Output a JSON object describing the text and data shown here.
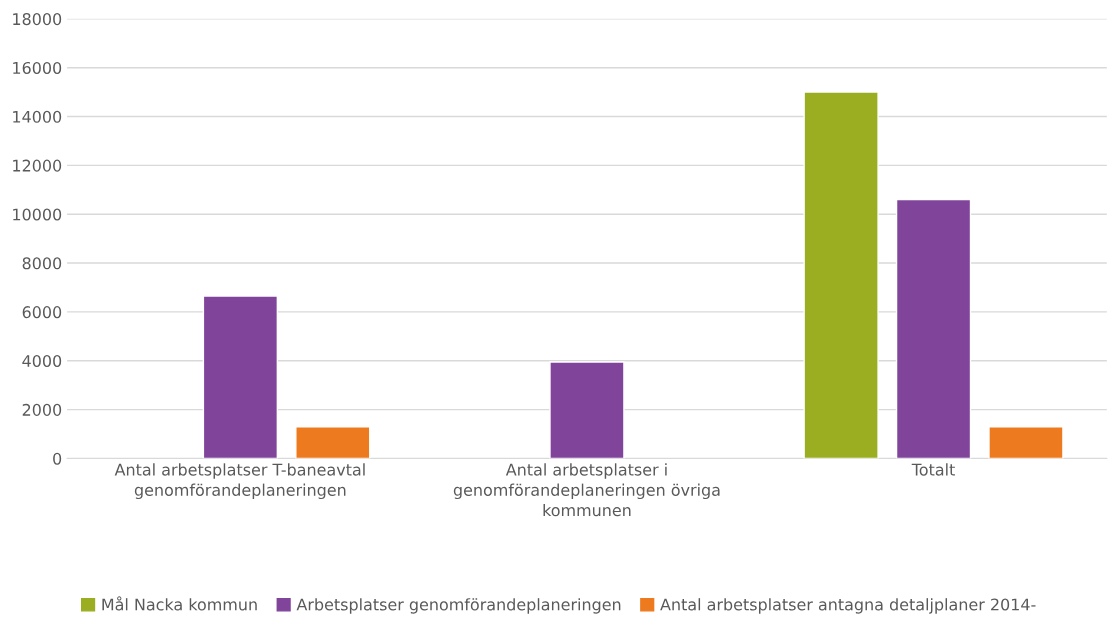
{
  "chart_data": {
    "type": "bar",
    "categories": [
      "Antal arbetsplatser T-baneavtal genomförandeplaneringen",
      "Antal arbetsplatser i genomförandeplaneringen övriga kommunen",
      "Totalt"
    ],
    "series": [
      {
        "name": "Mål Nacka kommun",
        "color": "#9bae22",
        "values": [
          null,
          null,
          15000
        ]
      },
      {
        "name": "Arbetsplatser genomförandeplaneringen",
        "color": "#80449b",
        "values": [
          6650,
          3950,
          10600
        ]
      },
      {
        "name": "Antal arbetsplatser antagna detaljplaner 2014-",
        "color": "#ed7a1e",
        "values": [
          1300,
          null,
          1300
        ]
      }
    ],
    "ylim": [
      0,
      18000
    ],
    "yticks": [
      0,
      2000,
      4000,
      6000,
      8000,
      10000,
      12000,
      14000,
      16000,
      18000
    ],
    "grid": "y",
    "legend": "bottom"
  }
}
